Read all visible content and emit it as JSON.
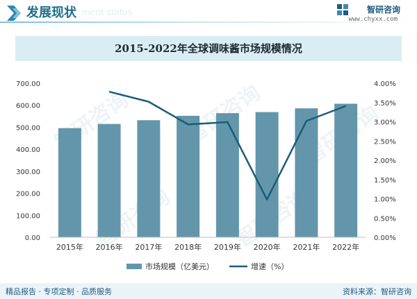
{
  "header": {
    "title": "发展现状",
    "ghost_text": "ment status",
    "brand_name": "智研咨询",
    "brand_url": "www.chyxx.com"
  },
  "footer": {
    "left": "精品报告 · 专项定制 · 品质服务",
    "right": "资料来源：智研咨询"
  },
  "colors": {
    "bar": "#6496ab",
    "line": "#1a5c7a",
    "accent": "#1f6e8c",
    "banner": "#d9edf4"
  },
  "chart_data": {
    "type": "bar",
    "title": "2015-2022年全球调味酱市场规模情况",
    "categories": [
      "2015年",
      "2016年",
      "2017年",
      "2018年",
      "2019年",
      "2020年",
      "2021年",
      "2022年"
    ],
    "series": [
      {
        "name": "市场规模（亿美元）",
        "type": "bar",
        "axis": "left",
        "values": [
          496,
          515,
          532,
          552,
          564,
          569,
          586,
          607
        ]
      },
      {
        "name": "增速（%）",
        "type": "line",
        "axis": "right",
        "values": [
          null,
          3.78,
          3.52,
          2.93,
          2.99,
          0.98,
          3.02,
          3.41
        ]
      }
    ],
    "y_left": {
      "min": 0,
      "max": 700,
      "step": 100,
      "ticks": [
        "0.00",
        "100.00",
        "200.00",
        "300.00",
        "400.00",
        "500.00",
        "600.00",
        "700.00"
      ]
    },
    "y_right": {
      "min": 0,
      "max": 4,
      "step": 0.5,
      "ticks": [
        "0.00%",
        "0.50%",
        "1.00%",
        "1.50%",
        "2.00%",
        "2.50%",
        "3.00%",
        "3.50%",
        "4.00%"
      ]
    },
    "grid": false,
    "legend_position": "bottom-center"
  }
}
